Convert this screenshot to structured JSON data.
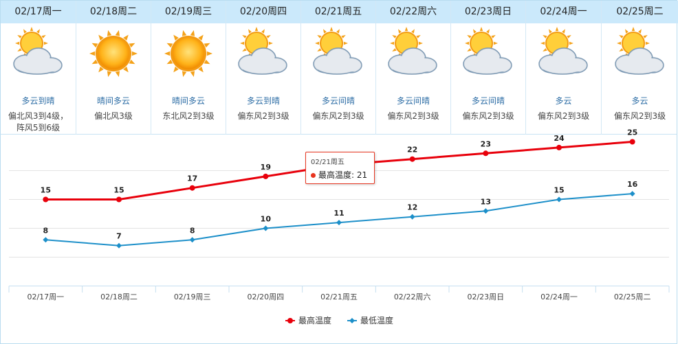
{
  "days": [
    {
      "date": "02/17周一",
      "icon": "sun-cloud-icon",
      "desc": "多云到晴",
      "wind": "偏北风3到4级，阵风5到6级"
    },
    {
      "date": "02/18周二",
      "icon": "sun-icon",
      "desc": "晴间多云",
      "wind": "偏北风3级"
    },
    {
      "date": "02/19周三",
      "icon": "sun-icon",
      "desc": "晴间多云",
      "wind": "东北风2到3级"
    },
    {
      "date": "02/20周四",
      "icon": "sun-cloud-icon",
      "desc": "多云到晴",
      "wind": "偏东风2到3级"
    },
    {
      "date": "02/21周五",
      "icon": "sun-cloud-icon",
      "desc": "多云间晴",
      "wind": "偏东风2到3级"
    },
    {
      "date": "02/22周六",
      "icon": "sun-cloud-icon",
      "desc": "多云间晴",
      "wind": "偏东风2到3级"
    },
    {
      "date": "02/23周日",
      "icon": "sun-cloud-icon",
      "desc": "多云间晴",
      "wind": "偏东风2到3级"
    },
    {
      "date": "02/24周一",
      "icon": "sun-cloud-icon",
      "desc": "多云",
      "wind": "偏东风2到3级"
    },
    {
      "date": "02/25周二",
      "icon": "sun-cloud-icon",
      "desc": "多云",
      "wind": "偏东风2到3级"
    }
  ],
  "tooltip": {
    "date": "02/21周五",
    "label": "最高温度: 21"
  },
  "colors": {
    "high": "#e8000b",
    "low": "#1c8fc9",
    "header": "#cbe9fb",
    "desc": "#2e6ea6"
  },
  "chart_data": {
    "type": "line",
    "categories": [
      "02/17周一",
      "02/18周二",
      "02/19周三",
      "02/20周四",
      "02/21周五",
      "02/22周六",
      "02/23周日",
      "02/24周一",
      "02/25周二"
    ],
    "series": [
      {
        "name": "最高温度",
        "values": [
          15,
          15,
          17,
          19,
          21,
          22,
          23,
          24,
          25
        ],
        "color": "#e8000b"
      },
      {
        "name": "最低温度",
        "values": [
          8,
          7,
          8,
          10,
          11,
          12,
          13,
          15,
          16
        ],
        "color": "#1c8fc9"
      }
    ],
    "ylim": [
      0,
      30
    ],
    "grid": true,
    "legend": "bottom-center",
    "highlighted_index": 4
  }
}
